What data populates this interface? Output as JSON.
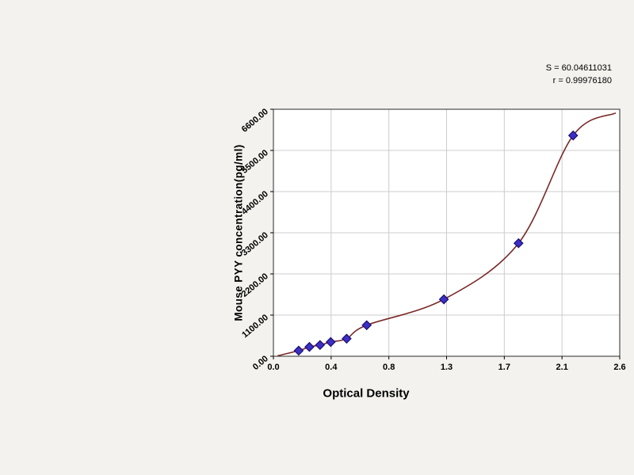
{
  "figure": {
    "bg_color": "#f3f2ee",
    "plot_bg": "#ffffff",
    "grid_color": "#cccccc",
    "frame_color": "#2b2b2b",
    "tick_color": "#000000"
  },
  "stats": {
    "line1": "S = 60.04611031",
    "line2": "r = 0.99976180"
  },
  "chart_data": {
    "type": "scatter",
    "title": "",
    "xlabel": "Optical Density",
    "ylabel": "Mouse PYY concentration(pg/ml)",
    "xlim": [
      0,
      2.6
    ],
    "ylim": [
      0,
      6600
    ],
    "grid": true,
    "x_tick_labels": [
      "0.0",
      "0.4",
      "0.8",
      "1.3",
      "1.7",
      "2.1",
      "2.6"
    ],
    "y_tick_labels": [
      "0.00",
      "1100.00",
      "2200.00",
      "3300.00",
      "4400.00",
      "5500.00",
      "6600.00"
    ],
    "curve_color": "#7a2828",
    "point_color": "#3d2ec6",
    "point_edge_color": "#191070",
    "points": [
      {
        "x": 0.19,
        "y": 150
      },
      {
        "x": 0.27,
        "y": 250
      },
      {
        "x": 0.35,
        "y": 300
      },
      {
        "x": 0.43,
        "y": 380
      },
      {
        "x": 0.55,
        "y": 470
      },
      {
        "x": 0.7,
        "y": 830
      },
      {
        "x": 1.28,
        "y": 1520
      },
      {
        "x": 1.84,
        "y": 3020
      },
      {
        "x": 2.25,
        "y": 5900
      }
    ],
    "curve_start": {
      "x": 0.03,
      "y": 10
    },
    "curve_end": {
      "x": 2.57,
      "y": 6500
    },
    "legend": null
  }
}
